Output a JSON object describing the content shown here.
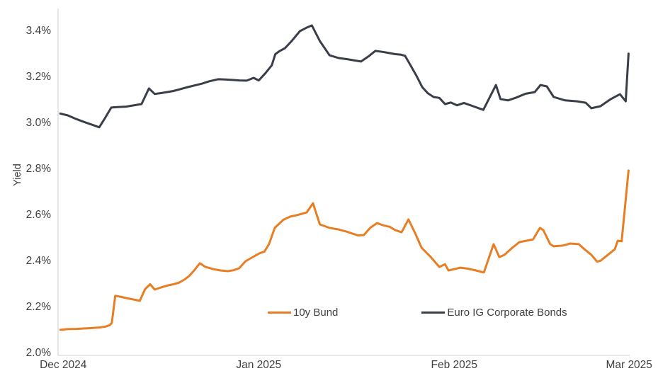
{
  "chart_data": {
    "type": "line",
    "title": "",
    "xlabel": "",
    "ylabel": "Yield",
    "grid": false,
    "legend_position": "bottom-inside",
    "axis_color": "#d9d9d9",
    "text_color": "#404040",
    "y_axis": {
      "min": 2.0,
      "max": 3.5,
      "tick_format": "percent",
      "ticks": [
        {
          "label": "2.0%",
          "value": 2.0
        },
        {
          "label": "2.2%",
          "value": 2.2
        },
        {
          "label": "2.4%",
          "value": 2.4
        },
        {
          "label": "2.6%",
          "value": 2.6
        },
        {
          "label": "2.8%",
          "value": 2.8
        },
        {
          "label": "3.0%",
          "value": 3.0
        },
        {
          "label": "3.2%",
          "value": 3.2
        },
        {
          "label": "3.4%",
          "value": 3.4
        }
      ]
    },
    "x_axis": {
      "range_note": "Dec 2024 through early Mar 2025, daily observations; x given as fraction of plot width",
      "ticks": [
        {
          "label": "Dec 2024",
          "pos": 0.009
        },
        {
          "label": "Jan 2025",
          "pos": 0.351
        },
        {
          "label": "Feb 2025",
          "pos": 0.693
        },
        {
          "label": "Mar 2025",
          "pos": 0.999
        }
      ]
    },
    "series": [
      {
        "name": "10y Bund",
        "color": "#e87e23",
        "points": [
          [
            0.004,
            2.102
          ],
          [
            0.017,
            2.105
          ],
          [
            0.032,
            2.106
          ],
          [
            0.047,
            2.108
          ],
          [
            0.061,
            2.11
          ],
          [
            0.072,
            2.112
          ],
          [
            0.083,
            2.116
          ],
          [
            0.09,
            2.122
          ],
          [
            0.094,
            2.132
          ],
          [
            0.1,
            2.25
          ],
          [
            0.109,
            2.246
          ],
          [
            0.119,
            2.24
          ],
          [
            0.131,
            2.234
          ],
          [
            0.143,
            2.228
          ],
          [
            0.152,
            2.278
          ],
          [
            0.161,
            2.3
          ],
          [
            0.169,
            2.277
          ],
          [
            0.18,
            2.286
          ],
          [
            0.191,
            2.294
          ],
          [
            0.202,
            2.3
          ],
          [
            0.211,
            2.306
          ],
          [
            0.221,
            2.32
          ],
          [
            0.229,
            2.335
          ],
          [
            0.238,
            2.36
          ],
          [
            0.248,
            2.391
          ],
          [
            0.258,
            2.375
          ],
          [
            0.273,
            2.365
          ],
          [
            0.284,
            2.36
          ],
          [
            0.297,
            2.357
          ],
          [
            0.307,
            2.361
          ],
          [
            0.317,
            2.37
          ],
          [
            0.328,
            2.4
          ],
          [
            0.342,
            2.42
          ],
          [
            0.352,
            2.434
          ],
          [
            0.361,
            2.442
          ],
          [
            0.369,
            2.474
          ],
          [
            0.379,
            2.545
          ],
          [
            0.394,
            2.58
          ],
          [
            0.406,
            2.594
          ],
          [
            0.419,
            2.601
          ],
          [
            0.435,
            2.612
          ],
          [
            0.446,
            2.652
          ],
          [
            0.458,
            2.56
          ],
          [
            0.475,
            2.545
          ],
          [
            0.491,
            2.538
          ],
          [
            0.506,
            2.528
          ],
          [
            0.515,
            2.52
          ],
          [
            0.525,
            2.512
          ],
          [
            0.535,
            2.514
          ],
          [
            0.546,
            2.545
          ],
          [
            0.558,
            2.566
          ],
          [
            0.569,
            2.556
          ],
          [
            0.58,
            2.55
          ],
          [
            0.59,
            2.535
          ],
          [
            0.601,
            2.526
          ],
          [
            0.613,
            2.582
          ],
          [
            0.625,
            2.52
          ],
          [
            0.636,
            2.458
          ],
          [
            0.652,
            2.418
          ],
          [
            0.667,
            2.375
          ],
          [
            0.677,
            2.387
          ],
          [
            0.683,
            2.36
          ],
          [
            0.694,
            2.366
          ],
          [
            0.704,
            2.372
          ],
          [
            0.716,
            2.368
          ],
          [
            0.731,
            2.36
          ],
          [
            0.745,
            2.351
          ],
          [
            0.762,
            2.474
          ],
          [
            0.772,
            2.418
          ],
          [
            0.781,
            2.428
          ],
          [
            0.793,
            2.455
          ],
          [
            0.807,
            2.483
          ],
          [
            0.819,
            2.489
          ],
          [
            0.831,
            2.495
          ],
          [
            0.843,
            2.545
          ],
          [
            0.849,
            2.535
          ],
          [
            0.861,
            2.474
          ],
          [
            0.867,
            2.465
          ],
          [
            0.883,
            2.468
          ],
          [
            0.896,
            2.477
          ],
          [
            0.911,
            2.474
          ],
          [
            0.921,
            2.452
          ],
          [
            0.933,
            2.428
          ],
          [
            0.943,
            2.398
          ],
          [
            0.949,
            2.402
          ],
          [
            0.962,
            2.428
          ],
          [
            0.974,
            2.452
          ],
          [
            0.979,
            2.489
          ],
          [
            0.986,
            2.487
          ],
          [
            0.998,
            2.794
          ]
        ]
      },
      {
        "name": "Euro IG Corporate Bonds",
        "color": "#3a3e49",
        "points": [
          [
            0.004,
            3.042
          ],
          [
            0.017,
            3.034
          ],
          [
            0.032,
            3.018
          ],
          [
            0.047,
            3.004
          ],
          [
            0.061,
            2.992
          ],
          [
            0.072,
            2.982
          ],
          [
            0.082,
            3.022
          ],
          [
            0.093,
            3.068
          ],
          [
            0.104,
            3.07
          ],
          [
            0.119,
            3.072
          ],
          [
            0.131,
            3.077
          ],
          [
            0.146,
            3.083
          ],
          [
            0.159,
            3.151
          ],
          [
            0.169,
            3.127
          ],
          [
            0.181,
            3.131
          ],
          [
            0.202,
            3.14
          ],
          [
            0.227,
            3.157
          ],
          [
            0.252,
            3.172
          ],
          [
            0.264,
            3.182
          ],
          [
            0.28,
            3.191
          ],
          [
            0.292,
            3.19
          ],
          [
            0.305,
            3.188
          ],
          [
            0.317,
            3.186
          ],
          [
            0.33,
            3.185
          ],
          [
            0.342,
            3.197
          ],
          [
            0.351,
            3.186
          ],
          [
            0.363,
            3.218
          ],
          [
            0.374,
            3.252
          ],
          [
            0.38,
            3.3
          ],
          [
            0.388,
            3.314
          ],
          [
            0.397,
            3.326
          ],
          [
            0.409,
            3.358
          ],
          [
            0.423,
            3.4
          ],
          [
            0.434,
            3.414
          ],
          [
            0.444,
            3.425
          ],
          [
            0.458,
            3.357
          ],
          [
            0.475,
            3.295
          ],
          [
            0.491,
            3.283
          ],
          [
            0.506,
            3.278
          ],
          [
            0.515,
            3.274
          ],
          [
            0.53,
            3.268
          ],
          [
            0.544,
            3.292
          ],
          [
            0.555,
            3.314
          ],
          [
            0.568,
            3.31
          ],
          [
            0.579,
            3.305
          ],
          [
            0.59,
            3.3
          ],
          [
            0.599,
            3.298
          ],
          [
            0.607,
            3.293
          ],
          [
            0.617,
            3.25
          ],
          [
            0.627,
            3.206
          ],
          [
            0.637,
            3.157
          ],
          [
            0.647,
            3.13
          ],
          [
            0.657,
            3.114
          ],
          [
            0.667,
            3.11
          ],
          [
            0.677,
            3.083
          ],
          [
            0.687,
            3.09
          ],
          [
            0.698,
            3.078
          ],
          [
            0.71,
            3.088
          ],
          [
            0.726,
            3.074
          ],
          [
            0.744,
            3.058
          ],
          [
            0.766,
            3.166
          ],
          [
            0.774,
            3.105
          ],
          [
            0.787,
            3.099
          ],
          [
            0.8,
            3.11
          ],
          [
            0.818,
            3.128
          ],
          [
            0.834,
            3.135
          ],
          [
            0.844,
            3.166
          ],
          [
            0.855,
            3.16
          ],
          [
            0.867,
            3.114
          ],
          [
            0.887,
            3.099
          ],
          [
            0.908,
            3.095
          ],
          [
            0.923,
            3.089
          ],
          [
            0.933,
            3.065
          ],
          [
            0.949,
            3.074
          ],
          [
            0.967,
            3.105
          ],
          [
            0.983,
            3.126
          ],
          [
            0.993,
            3.095
          ],
          [
            0.998,
            3.302
          ]
        ]
      }
    ]
  }
}
